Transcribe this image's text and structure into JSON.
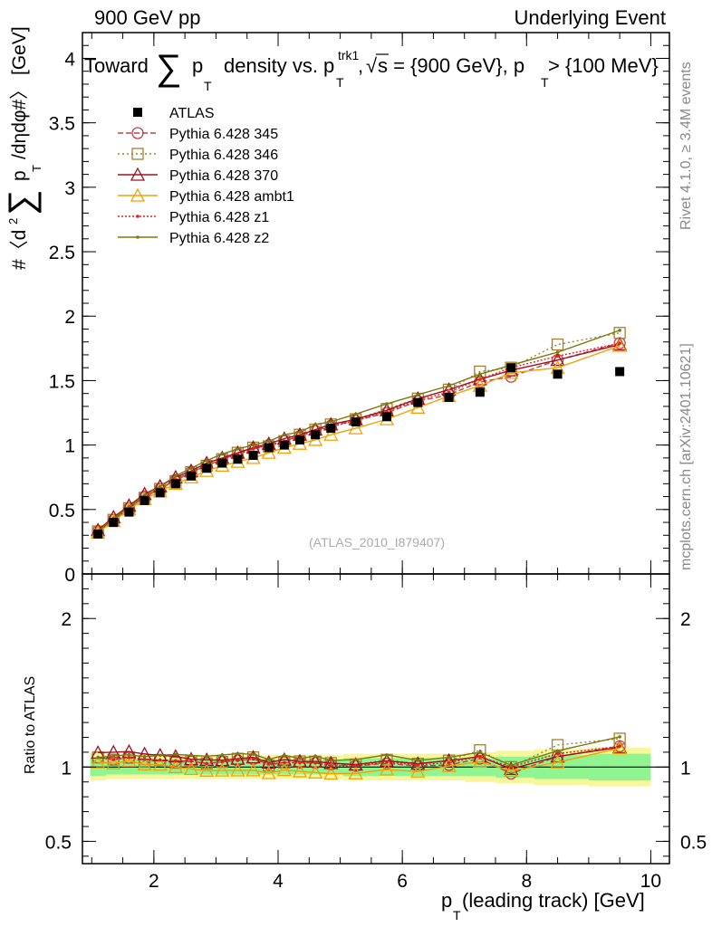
{
  "header": {
    "left": "900 GeV pp",
    "right": "Underlying Event",
    "side_top": "Rivet 4.1.0, ≥ 3.4M events",
    "side_bottom": "mcplots.cern.ch [arXiv:2401.10621]",
    "watermark": "(ATLAS_2010_I879407)"
  },
  "chart_data": {
    "type": "line",
    "title": "Toward ∑ pT density vs. pT trk1, √s = {900 GeV}, pT > {100 MeV}",
    "title_parts": {
      "toward": "Toward",
      "sum": "∑",
      "p": "p",
      "T": "T",
      "density_vs": "density vs. p",
      "trk1": "trk1",
      "sqrt": "√",
      "s_eq": "s = {900 GeV}, p",
      "gt": " > {100 MeV}"
    },
    "xlabel": "p",
    "xlabel_sub": "T",
    "xlabel_rest": " (leading track) [GeV]",
    "ylabel": "#〈d²∑ pT /dηdφ#〉 [GeV]",
    "ylabel_parts": {
      "a": "#〈d",
      "sup2": "2",
      "sum": "∑",
      "p": "p",
      "T": "T",
      "b": "/dηdφ#〉 [GeV]"
    },
    "ratio_ylabel": "Ratio to ATLAS",
    "xlim": [
      0.85,
      10.3
    ],
    "ylim": [
      0,
      4.2
    ],
    "ratio_ylim": [
      0.35,
      2.3
    ],
    "xticks": [
      2,
      4,
      6,
      8,
      10
    ],
    "yticks": [
      0,
      0.5,
      1,
      1.5,
      2,
      2.5,
      3,
      3.5,
      4
    ],
    "ratio_yticks": [
      0.5,
      1,
      2
    ],
    "x": [
      1.1,
      1.35,
      1.6,
      1.85,
      2.1,
      2.35,
      2.6,
      2.85,
      3.1,
      3.35,
      3.6,
      3.85,
      4.1,
      4.35,
      4.6,
      4.85,
      5.25,
      5.75,
      6.25,
      6.75,
      7.25,
      7.75,
      8.5,
      9.5
    ],
    "data": {
      "name": "ATLAS",
      "values": [
        0.31,
        0.4,
        0.48,
        0.57,
        0.63,
        0.7,
        0.76,
        0.82,
        0.86,
        0.89,
        0.92,
        0.98,
        1.0,
        1.04,
        1.08,
        1.13,
        1.18,
        1.22,
        1.33,
        1.37,
        1.41,
        1.6,
        1.55,
        1.57
      ],
      "color": "#000000"
    },
    "bands": {
      "inner": [
        0.06,
        0.05,
        0.05,
        0.05,
        0.05,
        0.05,
        0.05,
        0.05,
        0.05,
        0.05,
        0.05,
        0.05,
        0.05,
        0.05,
        0.05,
        0.05,
        0.06,
        0.06,
        0.06,
        0.06,
        0.06,
        0.07,
        0.08,
        0.09
      ],
      "outer": [
        0.09,
        0.08,
        0.08,
        0.08,
        0.08,
        0.08,
        0.08,
        0.08,
        0.08,
        0.08,
        0.08,
        0.08,
        0.08,
        0.08,
        0.08,
        0.08,
        0.09,
        0.09,
        0.09,
        0.09,
        0.1,
        0.11,
        0.12,
        0.13
      ],
      "inner_color": "#90f590",
      "outer_color": "#f7f79a"
    },
    "series": [
      {
        "name": "Pythia 6.428 345",
        "color": "#c0404a",
        "dash": "6,3",
        "marker": "circle",
        "values": [
          0.33,
          0.42,
          0.51,
          0.6,
          0.66,
          0.73,
          0.79,
          0.84,
          0.89,
          0.93,
          0.97,
          1.0,
          1.03,
          1.07,
          1.11,
          1.15,
          1.19,
          1.25,
          1.34,
          1.39,
          1.49,
          1.53,
          1.66,
          1.79
        ]
      },
      {
        "name": "Pythia 6.428 346",
        "color": "#a08030",
        "dash": "2,3",
        "marker": "square",
        "values": [
          0.33,
          0.42,
          0.51,
          0.59,
          0.66,
          0.72,
          0.79,
          0.84,
          0.89,
          0.94,
          0.98,
          0.99,
          1.03,
          1.08,
          1.12,
          1.16,
          1.2,
          1.28,
          1.36,
          1.43,
          1.57,
          1.6,
          1.78,
          1.87
        ]
      },
      {
        "name": "Pythia 6.428 370",
        "color": "#a01020",
        "dash": "",
        "marker": "triangle",
        "values": [
          0.34,
          0.44,
          0.53,
          0.62,
          0.68,
          0.75,
          0.8,
          0.86,
          0.9,
          0.94,
          0.98,
          1.01,
          1.05,
          1.08,
          1.12,
          1.16,
          1.2,
          1.27,
          1.36,
          1.43,
          1.51,
          1.58,
          1.66,
          1.78
        ]
      },
      {
        "name": "Pythia 6.428 ambt1",
        "color": "#f5a000",
        "dash": "",
        "marker": "triangle",
        "values": [
          0.32,
          0.41,
          0.5,
          0.58,
          0.64,
          0.7,
          0.75,
          0.8,
          0.84,
          0.87,
          0.9,
          0.94,
          0.98,
          1.01,
          1.04,
          1.08,
          1.13,
          1.2,
          1.29,
          1.38,
          1.46,
          1.56,
          1.6,
          1.77
        ]
      },
      {
        "name": "Pythia 6.428 z1",
        "color": "#e02020",
        "dash": "2,2",
        "marker": "dot",
        "values": [
          0.33,
          0.42,
          0.51,
          0.6,
          0.66,
          0.73,
          0.79,
          0.84,
          0.89,
          0.93,
          0.97,
          1.0,
          1.03,
          1.07,
          1.11,
          1.14,
          1.19,
          1.26,
          1.35,
          1.41,
          1.51,
          1.6,
          1.69,
          1.79
        ]
      },
      {
        "name": "Pythia 6.428 z2",
        "color": "#7a7a10",
        "dash": "",
        "marker": "dot",
        "values": [
          0.33,
          0.43,
          0.52,
          0.61,
          0.68,
          0.76,
          0.82,
          0.88,
          0.93,
          0.97,
          1.0,
          1.03,
          1.08,
          1.1,
          1.16,
          1.18,
          1.24,
          1.32,
          1.39,
          1.46,
          1.55,
          1.62,
          1.72,
          1.89
        ]
      }
    ],
    "legend": "top-left"
  }
}
